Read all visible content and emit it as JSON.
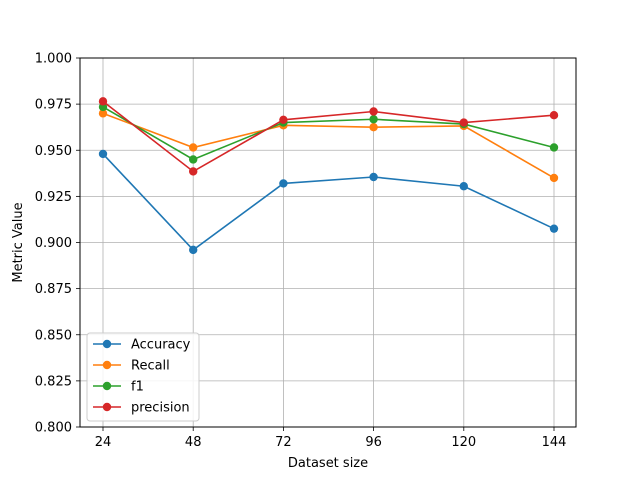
{
  "chart_data": {
    "type": "line",
    "title": "",
    "xlabel": "Dataset size",
    "ylabel": "Metric Value",
    "x": [
      24,
      48,
      72,
      96,
      120,
      144
    ],
    "xticks": [
      "24",
      "48",
      "72",
      "96",
      "120",
      "144"
    ],
    "ylim": [
      0.8,
      1.0
    ],
    "yticks": [
      "0.800",
      "0.825",
      "0.850",
      "0.875",
      "0.900",
      "0.925",
      "0.950",
      "0.975",
      "1.000"
    ],
    "grid": true,
    "legend_position": "lower-left",
    "series": [
      {
        "name": "Accuracy",
        "color": "#1f77b4",
        "values": [
          0.948,
          0.896,
          0.932,
          0.9355,
          0.9305,
          0.9075
        ]
      },
      {
        "name": "Recall",
        "color": "#ff7f0e",
        "values": [
          0.97,
          0.9515,
          0.9635,
          0.9625,
          0.9632,
          0.935
        ]
      },
      {
        "name": "f1",
        "color": "#2ca02c",
        "values": [
          0.9735,
          0.945,
          0.965,
          0.9668,
          0.9642,
          0.9515
        ]
      },
      {
        "name": "precision",
        "color": "#d62728",
        "values": [
          0.9765,
          0.9385,
          0.9665,
          0.971,
          0.965,
          0.969
        ]
      }
    ]
  }
}
